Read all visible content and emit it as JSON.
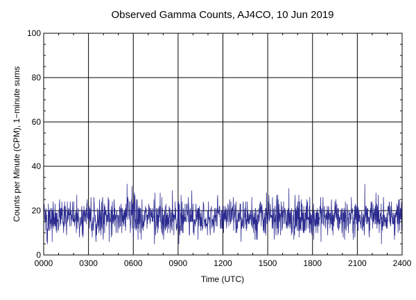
{
  "chart_data": {
    "type": "line",
    "title": "Observed Gamma Counts, AJ4CO, 10 Jun 2019",
    "xlabel": "Time (UTC)",
    "ylabel": "Counts per Minute (CPM), 1−minute sums",
    "xlim": [
      0,
      1440
    ],
    "ylim": [
      0,
      100
    ],
    "x_tick_labels": [
      "0000",
      "0300",
      "0600",
      "0900",
      "1200",
      "1500",
      "1800",
      "2100",
      "2400"
    ],
    "x_tick_minutes": [
      0,
      180,
      360,
      540,
      720,
      900,
      1080,
      1260,
      1440
    ],
    "y_ticks": [
      0,
      20,
      40,
      60,
      80,
      100
    ],
    "grid": true,
    "series": [
      {
        "color": "#2b2b8f",
        "sampling": "1-minute sums, one value per minute from 0000 to 2400 UTC",
        "approx_mean": 17,
        "approx_min": 5,
        "approx_max": 32,
        "notable_peaks": [
          {
            "time": "0535",
            "value": 32
          },
          {
            "time": "0555",
            "value": 31
          },
          {
            "time": "2130",
            "value": 32
          },
          {
            "time": "0725",
            "value": 5
          },
          {
            "time": "0015",
            "value": 5
          },
          {
            "time": "1625",
            "value": 30
          }
        ]
      }
    ]
  }
}
